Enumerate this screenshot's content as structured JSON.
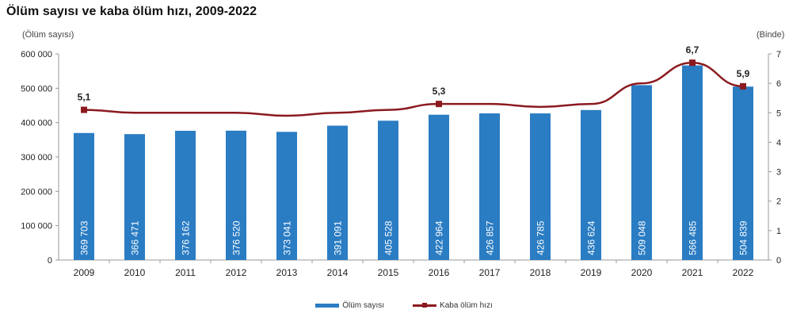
{
  "title": "Ölüm sayısı ve kaba ölüm hızı, 2009-2022",
  "left_axis_label": "(Ölüm sayısı)",
  "right_axis_label": "(Binde)",
  "legend": {
    "bar_label": "Ölüm sayısı",
    "line_label": "Kaba ölüm hızı"
  },
  "colors": {
    "bar": "#2a7cc3",
    "line": "#8b1a1f",
    "axis": "#999999"
  },
  "chart_data": {
    "type": "bar+line",
    "title": "Ölüm sayısı ve kaba ölüm hızı, 2009-2022",
    "categories": [
      "2009",
      "2010",
      "2011",
      "2012",
      "2013",
      "2014",
      "2015",
      "2016",
      "2017",
      "2018",
      "2019",
      "2020",
      "2021",
      "2022"
    ],
    "series": [
      {
        "name": "Ölüm sayısı",
        "type": "bar",
        "axis": "left",
        "values": [
          369703,
          366471,
          376162,
          376520,
          373041,
          391091,
          405528,
          422964,
          426857,
          426785,
          436624,
          509048,
          566485,
          504839
        ],
        "labels": [
          "369 703",
          "366 471",
          "376 162",
          "376 520",
          "373 041",
          "391 091",
          "405 528",
          "422 964",
          "426 857",
          "426 785",
          "436 624",
          "509 048",
          "566 485",
          "504 839"
        ]
      },
      {
        "name": "Kaba ölüm hızı",
        "type": "line",
        "axis": "right",
        "values": [
          5.1,
          5.0,
          5.0,
          5.0,
          4.9,
          5.0,
          5.1,
          5.3,
          5.3,
          5.2,
          5.3,
          6.0,
          6.7,
          5.9
        ],
        "point_labels": {
          "0": "5,1",
          "7": "5,3",
          "12": "6,7",
          "13": "5,9"
        }
      }
    ],
    "ylabel_left": "(Ölüm sayısı)",
    "ylabel_right": "(Binde)",
    "ylim_left": [
      0,
      600000
    ],
    "ylim_right": [
      0,
      7
    ],
    "yticks_left": [
      "0",
      "100 000",
      "200 000",
      "300 000",
      "400 000",
      "500 000",
      "600 000"
    ],
    "yticks_right": [
      "0",
      "1",
      "2",
      "3",
      "4",
      "5",
      "6",
      "7"
    ],
    "grid": false,
    "legend_position": "bottom"
  }
}
